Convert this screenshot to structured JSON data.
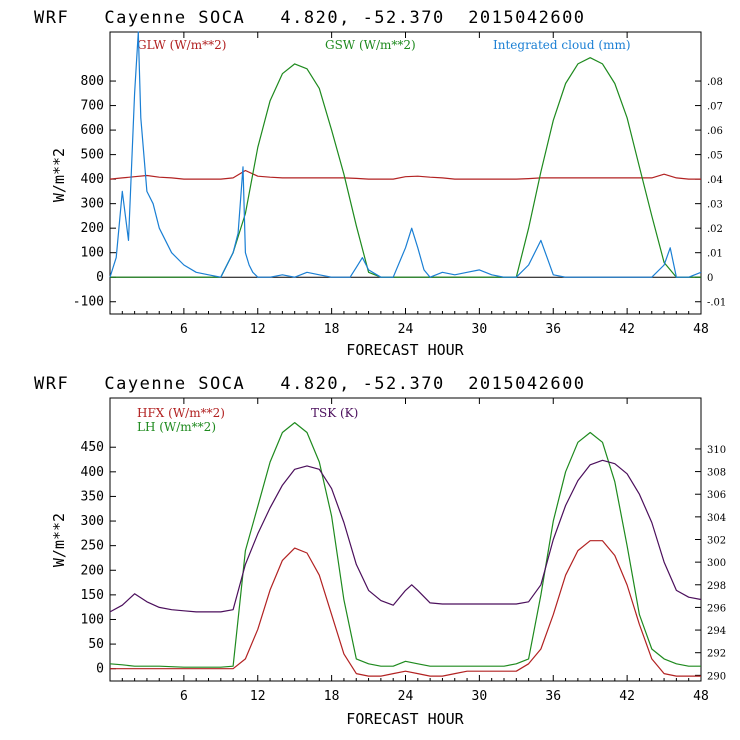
{
  "chart_data": [
    {
      "type": "line",
      "title": "WRF   Cayenne SOCA   4.820, -52.370  2015042600",
      "xlabel": "FORECAST HOUR",
      "ylabel": "W/m**2",
      "xlim": [
        0,
        48
      ],
      "ylim": [
        -150,
        1000
      ],
      "y2lim": [
        -0.015,
        0.1
      ],
      "xticks": [
        6,
        12,
        18,
        24,
        30,
        36,
        42,
        48
      ],
      "xtick_labels": [
        "6",
        "12",
        "18",
        "24",
        "30",
        "36",
        "42",
        "48"
      ],
      "yticks": [
        -100,
        0,
        100,
        200,
        300,
        400,
        500,
        600,
        700,
        800
      ],
      "ytick_labels": [
        "-100",
        "0",
        "100",
        "200",
        "300",
        "400",
        "500",
        "600",
        "700",
        "800"
      ],
      "y2ticks": [
        -0.01,
        0,
        0.01,
        0.02,
        0.03,
        0.04,
        0.05,
        0.06,
        0.07,
        0.08
      ],
      "y2tick_labels": [
        "-.01",
        "0",
        ".01",
        ".02",
        ".03",
        ".04",
        ".05",
        ".06",
        ".07",
        ".08"
      ],
      "zero_line": true,
      "series": [
        {
          "name": "GLW (W/m**2)",
          "color": "#b22222",
          "axis": "left",
          "x": [
            0,
            1,
            2,
            3,
            4,
            5,
            6,
            7,
            8,
            9,
            10,
            11,
            12,
            13,
            14,
            15,
            16,
            17,
            18,
            19,
            20,
            21,
            22,
            23,
            24,
            25,
            26,
            27,
            28,
            29,
            30,
            31,
            32,
            33,
            34,
            35,
            36,
            37,
            38,
            39,
            40,
            41,
            42,
            43,
            44,
            45,
            46,
            47,
            48
          ],
          "y": [
            400,
            405,
            410,
            415,
            408,
            405,
            400,
            400,
            400,
            400,
            405,
            435,
            412,
            408,
            405,
            405,
            405,
            405,
            405,
            405,
            403,
            400,
            400,
            400,
            410,
            412,
            408,
            405,
            400,
            400,
            400,
            400,
            400,
            400,
            402,
            405,
            405,
            405,
            405,
            405,
            405,
            405,
            405,
            405,
            405,
            420,
            405,
            400,
            400
          ]
        },
        {
          "name": "GSW (W/m**2)",
          "color": "#1e8a1e",
          "axis": "left",
          "x": [
            0,
            9,
            10,
            11,
            12,
            13,
            14,
            15,
            16,
            17,
            18,
            19,
            20,
            21,
            22,
            33,
            34,
            35,
            36,
            37,
            38,
            39,
            40,
            41,
            42,
            43,
            44,
            45,
            46,
            48
          ],
          "y": [
            0,
            0,
            100,
            260,
            530,
            720,
            830,
            870,
            850,
            770,
            600,
            420,
            210,
            20,
            0,
            0,
            200,
            430,
            640,
            790,
            870,
            895,
            870,
            790,
            650,
            450,
            250,
            60,
            0,
            0
          ]
        },
        {
          "name": "Integrated cloud (mm)",
          "color": "#1a7fd4",
          "axis": "right",
          "x": [
            0,
            0.5,
            1,
            1.5,
            2,
            2.3,
            2.5,
            3,
            3.5,
            4,
            5,
            6,
            7,
            8,
            9,
            10,
            10.4,
            10.8,
            11,
            11.3,
            11.6,
            12,
            13,
            14,
            15,
            16,
            17,
            18,
            19,
            19.5,
            20,
            20.5,
            21,
            22,
            23,
            24,
            24.5,
            25,
            25.5,
            26,
            27,
            28,
            29,
            30,
            31,
            32,
            33,
            34,
            35,
            35.5,
            36,
            37,
            38,
            39,
            40,
            41,
            42,
            43,
            44,
            45,
            45.5,
            46,
            47,
            48
          ],
          "y": [
            0,
            0.008,
            0.035,
            0.015,
            0.075,
            0.1,
            0.065,
            0.035,
            0.03,
            0.02,
            0.01,
            0.005,
            0.002,
            0.001,
            0,
            0.01,
            0.018,
            0.045,
            0.01,
            0.005,
            0.002,
            0,
            0,
            0.001,
            0,
            0.002,
            0.001,
            0,
            0,
            0,
            0.004,
            0.008,
            0.003,
            0,
            0,
            0.012,
            0.02,
            0.012,
            0.003,
            0,
            0.002,
            0.001,
            0.002,
            0.003,
            0.001,
            0,
            0,
            0.005,
            0.015,
            0.008,
            0.001,
            0,
            0,
            0,
            0,
            0,
            0,
            0,
            0,
            0.005,
            0.012,
            0,
            0,
            0.002
          ]
        }
      ]
    },
    {
      "type": "line",
      "title": "WRF   Cayenne SOCA   4.820, -52.370  2015042600",
      "xlabel": "FORECAST HOUR",
      "ylabel": "W/m**2",
      "xlim": [
        0,
        48
      ],
      "ylim": [
        -25,
        550
      ],
      "y2lim": [
        289.5,
        314.5
      ],
      "xticks": [
        6,
        12,
        18,
        24,
        30,
        36,
        42,
        48
      ],
      "xtick_labels": [
        "6",
        "12",
        "18",
        "24",
        "30",
        "36",
        "42",
        "48"
      ],
      "yticks": [
        0,
        50,
        100,
        150,
        200,
        250,
        300,
        350,
        400,
        450
      ],
      "ytick_labels": [
        "0",
        "50",
        "100",
        "150",
        "200",
        "250",
        "300",
        "350",
        "400",
        "450"
      ],
      "y2ticks": [
        290,
        292,
        294,
        296,
        298,
        300,
        302,
        304,
        306,
        308,
        310
      ],
      "y2tick_labels": [
        "290",
        "292",
        "294",
        "296",
        "298",
        "300",
        "302",
        "304",
        "306",
        "308",
        "310"
      ],
      "zero_line": false,
      "series": [
        {
          "name": "HFX (W/m**2)",
          "color": "#b22222",
          "axis": "left",
          "x": [
            0,
            9,
            10,
            11,
            12,
            13,
            14,
            15,
            16,
            17,
            18,
            19,
            20,
            21,
            22,
            23,
            24,
            25,
            26,
            27,
            28,
            29,
            30,
            31,
            32,
            33,
            34,
            35,
            36,
            37,
            38,
            39,
            40,
            41,
            42,
            43,
            44,
            45,
            46,
            47,
            48
          ],
          "y": [
            0,
            0,
            0,
            20,
            80,
            160,
            220,
            245,
            235,
            190,
            110,
            30,
            -10,
            -15,
            -15,
            -10,
            -5,
            -10,
            -15,
            -15,
            -10,
            -5,
            -5,
            -5,
            -5,
            -5,
            10,
            40,
            110,
            190,
            240,
            260,
            260,
            230,
            170,
            90,
            20,
            -10,
            -15,
            -15,
            -15
          ]
        },
        {
          "name": "LH (W/m**2)",
          "color": "#1e8a1e",
          "axis": "left",
          "x": [
            0,
            1,
            2,
            3,
            4,
            5,
            6,
            7,
            8,
            9,
            10,
            11,
            12,
            13,
            14,
            15,
            16,
            17,
            18,
            19,
            20,
            21,
            22,
            23,
            24,
            25,
            26,
            27,
            28,
            29,
            30,
            31,
            32,
            33,
            34,
            35,
            36,
            37,
            38,
            39,
            40,
            41,
            42,
            43,
            44,
            45,
            46,
            47,
            48
          ],
          "y": [
            10,
            8,
            5,
            5,
            5,
            4,
            3,
            3,
            3,
            3,
            5,
            240,
            330,
            420,
            480,
            500,
            480,
            420,
            310,
            140,
            20,
            10,
            5,
            5,
            15,
            10,
            5,
            5,
            5,
            5,
            5,
            5,
            5,
            10,
            20,
            150,
            300,
            400,
            460,
            480,
            460,
            380,
            250,
            110,
            40,
            20,
            10,
            5,
            5
          ]
        },
        {
          "name": "TSK (K)",
          "color": "#4b0f5c",
          "axis": "right",
          "x": [
            0,
            1,
            2,
            3,
            4,
            5,
            6,
            7,
            8,
            9,
            10,
            11,
            12,
            13,
            14,
            15,
            16,
            17,
            18,
            19,
            20,
            21,
            22,
            23,
            24,
            24.5,
            25,
            26,
            27,
            28,
            29,
            30,
            31,
            32,
            33,
            34,
            35,
            36,
            37,
            38,
            39,
            40,
            41,
            42,
            43,
            44,
            45,
            46,
            47,
            48
          ],
          "y": [
            295.6,
            296.2,
            297.2,
            296.5,
            296,
            295.8,
            295.7,
            295.6,
            295.6,
            295.6,
            295.8,
            299.8,
            302.5,
            304.8,
            306.8,
            308.2,
            308.5,
            308.2,
            306.5,
            303.5,
            299.8,
            297.5,
            296.6,
            296.2,
            297.5,
            298,
            297.5,
            296.4,
            296.3,
            296.3,
            296.3,
            296.3,
            296.3,
            296.3,
            296.3,
            296.5,
            298,
            302,
            305,
            307.2,
            308.6,
            309,
            308.7,
            307.8,
            306,
            303.5,
            300,
            297.5,
            296.9,
            296.7
          ]
        }
      ]
    }
  ]
}
